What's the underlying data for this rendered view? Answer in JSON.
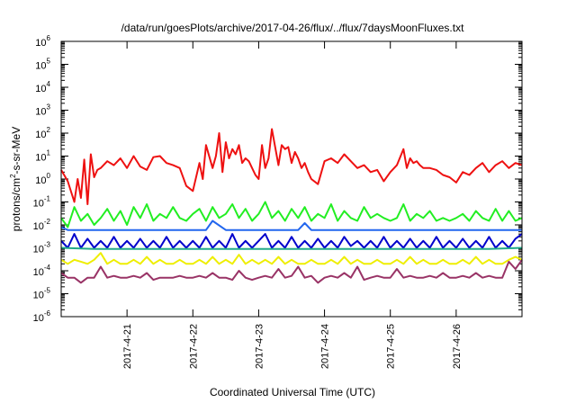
{
  "chart_data": {
    "type": "line",
    "title": "/data/run/goesPlots/archive/2017-04-26/flux/../flux/7daysMoonFluxes.txt",
    "xlabel": "Coordinated Universal Time (UTC)",
    "ylabel": {
      "pre": "protons/cm",
      "sup": "2",
      "post": "-s-sr-MeV"
    },
    "yscale": "log",
    "ylim": [
      1e-06,
      1000000.0
    ],
    "yticks": [
      {
        "base": "10",
        "exp": "-6"
      },
      {
        "base": "10",
        "exp": "-5"
      },
      {
        "base": "10",
        "exp": "-4"
      },
      {
        "base": "10",
        "exp": "-3"
      },
      {
        "base": "10",
        "exp": "-2"
      },
      {
        "base": "10",
        "exp": "-1"
      },
      {
        "base": "10",
        "exp": "0"
      },
      {
        "base": "10",
        "exp": "1"
      },
      {
        "base": "10",
        "exp": "2"
      },
      {
        "base": "10",
        "exp": "3"
      },
      {
        "base": "10",
        "exp": "4"
      },
      {
        "base": "10",
        "exp": "5"
      },
      {
        "base": "10",
        "exp": "6"
      }
    ],
    "xlim": [
      0,
      7
    ],
    "x_unit": "days from 2017-04-20 00:00 UTC",
    "xticks": [
      {
        "x": 1,
        "label": "2017-4-21"
      },
      {
        "x": 2,
        "label": "2017-4-22"
      },
      {
        "x": 3,
        "label": "2017-4-23"
      },
      {
        "x": 4,
        "label": "2017-4-24"
      },
      {
        "x": 5,
        "label": "2017-4-25"
      },
      {
        "x": 6,
        "label": "2017-4-26"
      }
    ],
    "legend": "none",
    "grid": false,
    "series": [
      {
        "color": "#ee1111",
        "x": [
          0,
          0.1,
          0.2,
          0.25,
          0.3,
          0.35,
          0.4,
          0.45,
          0.5,
          0.55,
          0.6,
          0.7,
          0.8,
          0.9,
          1.0,
          1.1,
          1.2,
          1.3,
          1.4,
          1.5,
          1.6,
          1.7,
          1.8,
          1.9,
          2.0,
          2.1,
          2.15,
          2.2,
          2.3,
          2.35,
          2.4,
          2.45,
          2.5,
          2.55,
          2.6,
          2.65,
          2.7,
          2.75,
          2.8,
          2.85,
          2.9,
          2.95,
          3.0,
          3.05,
          3.1,
          3.15,
          3.2,
          3.3,
          3.35,
          3.4,
          3.45,
          3.5,
          3.55,
          3.6,
          3.65,
          3.7,
          3.75,
          3.8,
          3.9,
          4.0,
          4.1,
          4.2,
          4.3,
          4.4,
          4.5,
          4.6,
          4.7,
          4.8,
          4.9,
          5.0,
          5.1,
          5.2,
          5.25,
          5.3,
          5.35,
          5.4,
          5.45,
          5.5,
          5.6,
          5.7,
          5.8,
          5.9,
          6.0,
          6.1,
          6.2,
          6.3,
          6.4,
          6.5,
          6.6,
          6.7,
          6.8,
          6.9,
          7.0
        ],
        "y": [
          2.5,
          0.8,
          0.1,
          1.0,
          0.15,
          7,
          0.08,
          12,
          1.2,
          2.5,
          3,
          6,
          4,
          8,
          3,
          10,
          3.5,
          2.5,
          9,
          10,
          5,
          4,
          3,
          0.5,
          0.3,
          5,
          1,
          30,
          3,
          10,
          100,
          2,
          40,
          8,
          20,
          12,
          30,
          5,
          8,
          6,
          3,
          1.5,
          1,
          30,
          3,
          8,
          150,
          4,
          30,
          20,
          25,
          5,
          15,
          8,
          3,
          5,
          2,
          1,
          0.6,
          6,
          8,
          5,
          12,
          6,
          3,
          4,
          2,
          2.5,
          0.8,
          2,
          4,
          20,
          3,
          8,
          5,
          6,
          4,
          3,
          3,
          2.5,
          1.5,
          1.2,
          0.7,
          2,
          1.5,
          3,
          5,
          2,
          4,
          6,
          3,
          5,
          4
        ]
      },
      {
        "color": "#22ee22",
        "x": [
          0,
          0.1,
          0.2,
          0.3,
          0.4,
          0.5,
          0.6,
          0.7,
          0.8,
          0.9,
          1.0,
          1.1,
          1.2,
          1.3,
          1.4,
          1.5,
          1.6,
          1.7,
          1.8,
          1.9,
          2.0,
          2.1,
          2.2,
          2.3,
          2.4,
          2.5,
          2.6,
          2.7,
          2.8,
          2.9,
          3.0,
          3.1,
          3.2,
          3.3,
          3.4,
          3.5,
          3.6,
          3.7,
          3.8,
          3.9,
          4.0,
          4.1,
          4.2,
          4.3,
          4.4,
          4.5,
          4.6,
          4.7,
          4.8,
          4.9,
          5.0,
          5.1,
          5.2,
          5.3,
          5.4,
          5.5,
          5.6,
          5.7,
          5.8,
          5.9,
          6.0,
          6.1,
          6.2,
          6.3,
          6.4,
          6.5,
          6.6,
          6.7,
          6.8,
          6.9,
          7.0
        ],
        "y": [
          0.02,
          0.008,
          0.06,
          0.015,
          0.03,
          0.01,
          0.02,
          0.05,
          0.015,
          0.04,
          0.01,
          0.06,
          0.02,
          0.08,
          0.015,
          0.03,
          0.02,
          0.06,
          0.02,
          0.015,
          0.03,
          0.05,
          0.015,
          0.06,
          0.02,
          0.03,
          0.08,
          0.02,
          0.05,
          0.015,
          0.03,
          0.1,
          0.02,
          0.04,
          0.015,
          0.05,
          0.02,
          0.06,
          0.015,
          0.03,
          0.02,
          0.08,
          0.015,
          0.04,
          0.02,
          0.015,
          0.06,
          0.02,
          0.03,
          0.02,
          0.015,
          0.02,
          0.08,
          0.015,
          0.03,
          0.02,
          0.04,
          0.015,
          0.02,
          0.015,
          0.02,
          0.03,
          0.015,
          0.04,
          0.02,
          0.015,
          0.05,
          0.015,
          0.04,
          0.015,
          0.02
        ]
      },
      {
        "color": "#2266ee",
        "x": [
          0,
          0.1,
          0.2,
          0.3,
          0.5,
          0.8,
          1.0,
          1.2,
          1.5,
          1.8,
          2.0,
          2.2,
          2.3,
          2.5,
          2.8,
          3.0,
          3.2,
          3.4,
          3.6,
          3.7,
          3.8,
          4.0,
          4.2,
          4.4,
          4.6,
          4.8,
          5.0,
          5.2,
          5.4,
          5.6,
          5.8,
          6.0,
          6.2,
          6.4,
          6.6,
          6.8,
          7.0
        ],
        "y": [
          0.008,
          0.006,
          0.006,
          0.006,
          0.006,
          0.006,
          0.006,
          0.006,
          0.006,
          0.006,
          0.006,
          0.006,
          0.015,
          0.006,
          0.006,
          0.006,
          0.006,
          0.006,
          0.006,
          0.012,
          0.006,
          0.006,
          0.006,
          0.006,
          0.006,
          0.006,
          0.006,
          0.006,
          0.006,
          0.006,
          0.006,
          0.006,
          0.006,
          0.006,
          0.006,
          0.006,
          0.006
        ]
      },
      {
        "color": "#0000cc",
        "x": [
          0,
          0.1,
          0.2,
          0.3,
          0.4,
          0.5,
          0.6,
          0.7,
          0.8,
          0.9,
          1.0,
          1.1,
          1.2,
          1.3,
          1.4,
          1.5,
          1.6,
          1.7,
          1.8,
          1.9,
          2.0,
          2.1,
          2.2,
          2.3,
          2.4,
          2.5,
          2.6,
          2.7,
          2.8,
          2.9,
          3.0,
          3.1,
          3.2,
          3.3,
          3.4,
          3.5,
          3.6,
          3.7,
          3.8,
          3.9,
          4.0,
          4.1,
          4.2,
          4.3,
          4.4,
          4.5,
          4.6,
          4.7,
          4.8,
          4.9,
          5.0,
          5.1,
          5.2,
          5.3,
          5.4,
          5.5,
          5.6,
          5.7,
          5.8,
          5.9,
          6.0,
          6.1,
          6.2,
          6.3,
          6.4,
          6.5,
          6.6,
          6.7,
          6.8,
          6.9,
          7.0
        ],
        "y": [
          0.002,
          0.001,
          0.004,
          0.001,
          0.0025,
          0.001,
          0.002,
          0.001,
          0.003,
          0.001,
          0.002,
          0.001,
          0.0025,
          0.001,
          0.002,
          0.001,
          0.003,
          0.001,
          0.002,
          0.001,
          0.002,
          0.001,
          0.003,
          0.001,
          0.002,
          0.001,
          0.004,
          0.001,
          0.002,
          0.001,
          0.002,
          0.004,
          0.001,
          0.002,
          0.001,
          0.003,
          0.001,
          0.002,
          0.001,
          0.0025,
          0.001,
          0.002,
          0.001,
          0.003,
          0.0012,
          0.002,
          0.001,
          0.002,
          0.001,
          0.003,
          0.001,
          0.002,
          0.001,
          0.0025,
          0.001,
          0.002,
          0.001,
          0.003,
          0.001,
          0.002,
          0.001,
          0.0025,
          0.001,
          0.002,
          0.001,
          0.003,
          0.001,
          0.002,
          0.001,
          0.0025,
          0.004
        ]
      },
      {
        "color": "#22aa88",
        "x": [
          0,
          0.5,
          1.0,
          1.5,
          2.0,
          2.5,
          3.0,
          3.5,
          4.0,
          4.5,
          5.0,
          5.5,
          6.0,
          6.5,
          7.0
        ],
        "y": [
          0.001,
          0.0009,
          0.0009,
          0.0009,
          0.0009,
          0.0009,
          0.0009,
          0.0009,
          0.0009,
          0.0009,
          0.0009,
          0.0009,
          0.0009,
          0.0009,
          0.001
        ]
      },
      {
        "color": "#eeee00",
        "x": [
          0,
          0.1,
          0.2,
          0.3,
          0.4,
          0.5,
          0.6,
          0.7,
          0.8,
          0.9,
          1.0,
          1.1,
          1.2,
          1.3,
          1.4,
          1.5,
          1.6,
          1.7,
          1.8,
          1.9,
          2.0,
          2.1,
          2.2,
          2.3,
          2.4,
          2.5,
          2.6,
          2.7,
          2.8,
          2.9,
          3.0,
          3.1,
          3.2,
          3.3,
          3.4,
          3.5,
          3.6,
          3.7,
          3.8,
          3.9,
          4.0,
          4.1,
          4.2,
          4.3,
          4.4,
          4.5,
          4.6,
          4.7,
          4.8,
          4.9,
          5.0,
          5.1,
          5.2,
          5.3,
          5.4,
          5.5,
          5.6,
          5.7,
          5.8,
          5.9,
          6.0,
          6.1,
          6.2,
          6.3,
          6.4,
          6.5,
          6.6,
          6.7,
          6.8,
          6.9,
          7.0
        ],
        "y": [
          0.0003,
          0.0002,
          0.0003,
          0.00025,
          0.0002,
          0.0003,
          0.0006,
          0.0002,
          0.0003,
          0.0002,
          0.0002,
          0.0003,
          0.0002,
          0.0004,
          0.0002,
          0.0003,
          0.0002,
          0.0002,
          0.0003,
          0.0002,
          0.0002,
          0.0003,
          0.0002,
          0.0004,
          0.0002,
          0.0003,
          0.0002,
          0.0005,
          0.0002,
          0.0003,
          0.0002,
          0.0003,
          0.0002,
          0.0004,
          0.0002,
          0.0003,
          0.0002,
          0.0002,
          0.0003,
          0.0002,
          0.0002,
          0.0003,
          0.0002,
          0.0004,
          0.0002,
          0.0003,
          0.0002,
          0.0002,
          0.0003,
          0.0002,
          0.0002,
          0.0003,
          0.0002,
          0.0004,
          0.0002,
          0.0003,
          0.0002,
          0.0002,
          0.0003,
          0.0002,
          0.0002,
          0.0003,
          0.0002,
          0.0004,
          0.0002,
          0.0003,
          0.0002,
          0.0002,
          0.0003,
          0.0004,
          0.0003
        ]
      },
      {
        "color": "#993366",
        "x": [
          0,
          0.1,
          0.2,
          0.3,
          0.4,
          0.5,
          0.6,
          0.7,
          0.8,
          0.9,
          1.0,
          1.1,
          1.2,
          1.3,
          1.4,
          1.5,
          1.6,
          1.7,
          1.8,
          1.9,
          2.0,
          2.1,
          2.2,
          2.3,
          2.4,
          2.5,
          2.6,
          2.7,
          2.8,
          2.9,
          3.0,
          3.1,
          3.2,
          3.3,
          3.4,
          3.5,
          3.6,
          3.7,
          3.8,
          3.9,
          4.0,
          4.1,
          4.2,
          4.3,
          4.4,
          4.5,
          4.6,
          4.7,
          4.8,
          4.9,
          5.0,
          5.1,
          5.2,
          5.3,
          5.4,
          5.5,
          5.6,
          5.7,
          5.8,
          5.9,
          6.0,
          6.1,
          6.2,
          6.3,
          6.4,
          6.5,
          6.6,
          6.7,
          6.8,
          6.9,
          7.0
        ],
        "y": [
          8e-05,
          5e-05,
          5e-05,
          3e-05,
          5e-05,
          5e-05,
          0.00015,
          5e-05,
          6e-05,
          5e-05,
          5e-05,
          6e-05,
          5e-05,
          8e-05,
          4e-05,
          5e-05,
          5e-05,
          5e-05,
          6e-05,
          5e-05,
          5e-05,
          6e-05,
          5e-05,
          8e-05,
          5e-05,
          5e-05,
          4e-05,
          0.0001,
          5e-05,
          4e-05,
          5e-05,
          6e-05,
          5e-05,
          0.00012,
          5e-05,
          6e-05,
          0.00015,
          5e-05,
          6e-05,
          3e-05,
          5e-05,
          6e-05,
          5e-05,
          8e-05,
          5e-05,
          0.00015,
          4e-05,
          5e-05,
          6e-05,
          5e-05,
          5e-05,
          0.00012,
          5e-05,
          6e-05,
          5e-05,
          5e-05,
          6e-05,
          5e-05,
          8e-05,
          5e-05,
          5e-05,
          6e-05,
          5e-05,
          8e-05,
          5e-05,
          6e-05,
          5e-05,
          5e-05,
          0.00025,
          0.00012,
          0.0003
        ]
      }
    ]
  }
}
